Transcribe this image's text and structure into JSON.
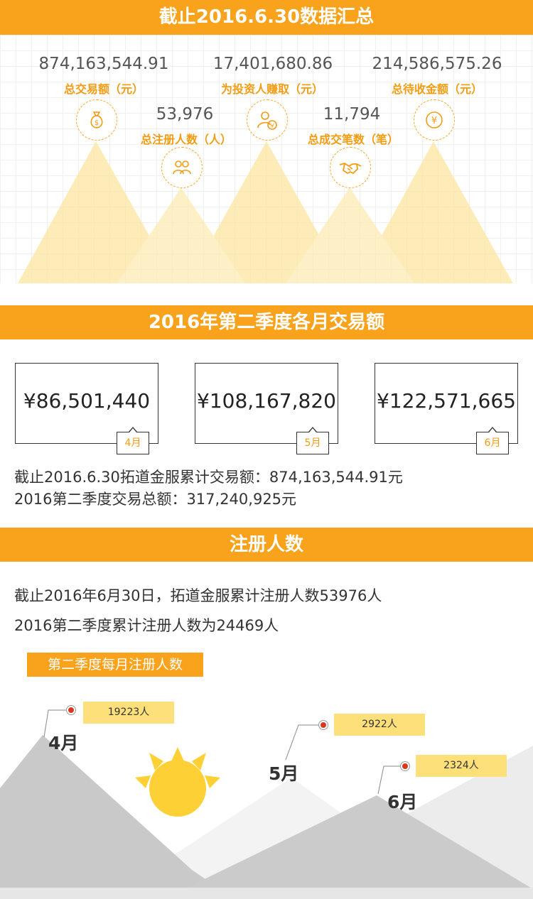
{
  "summary": {
    "title": "截止2016.6.30数据汇总",
    "stats": [
      {
        "value": "874,163,544.91",
        "label": "总交易额（元）",
        "icon": "money-bag-icon"
      },
      {
        "value": "53,976",
        "label": "总注册人数（人）",
        "icon": "users-icon"
      },
      {
        "value": "17,401,680.86",
        "label": "为投资人赚取（元）",
        "icon": "investor-yen-icon"
      },
      {
        "value": "11,794",
        "label": "总成交笔数（笔）",
        "icon": "handshake-icon"
      },
      {
        "value": "214,586,575.26",
        "label": "总待收金额（元）",
        "icon": "yen-coin-icon"
      }
    ],
    "colors": {
      "accent": "#f9a21b",
      "triangle": "#fde9a8"
    }
  },
  "quarter": {
    "title": "2016年第二季度各月交易额",
    "months": [
      {
        "amount": "¥86,501,440",
        "tag": "4月"
      },
      {
        "amount": "¥108,167,820",
        "tag": "5月"
      },
      {
        "amount": "¥122,571,665",
        "tag": "6月"
      }
    ],
    "line1": "截止2016.6.30拓道金服累计交易额：874,163,544.91元",
    "line2": "2016第二季度交易总额：317,240,925元"
  },
  "registration": {
    "title": "注册人数",
    "line1": "截止2016年6月30日，拓道金服累计注册人数53976人",
    "line2": "2016第二季度累计注册人数为24469人",
    "subtitle": "第二季度每月注册人数",
    "months": [
      {
        "label": "4月",
        "value": "19223人"
      },
      {
        "label": "5月",
        "value": "2922人"
      },
      {
        "label": "6月",
        "value": "2324人"
      }
    ]
  }
}
